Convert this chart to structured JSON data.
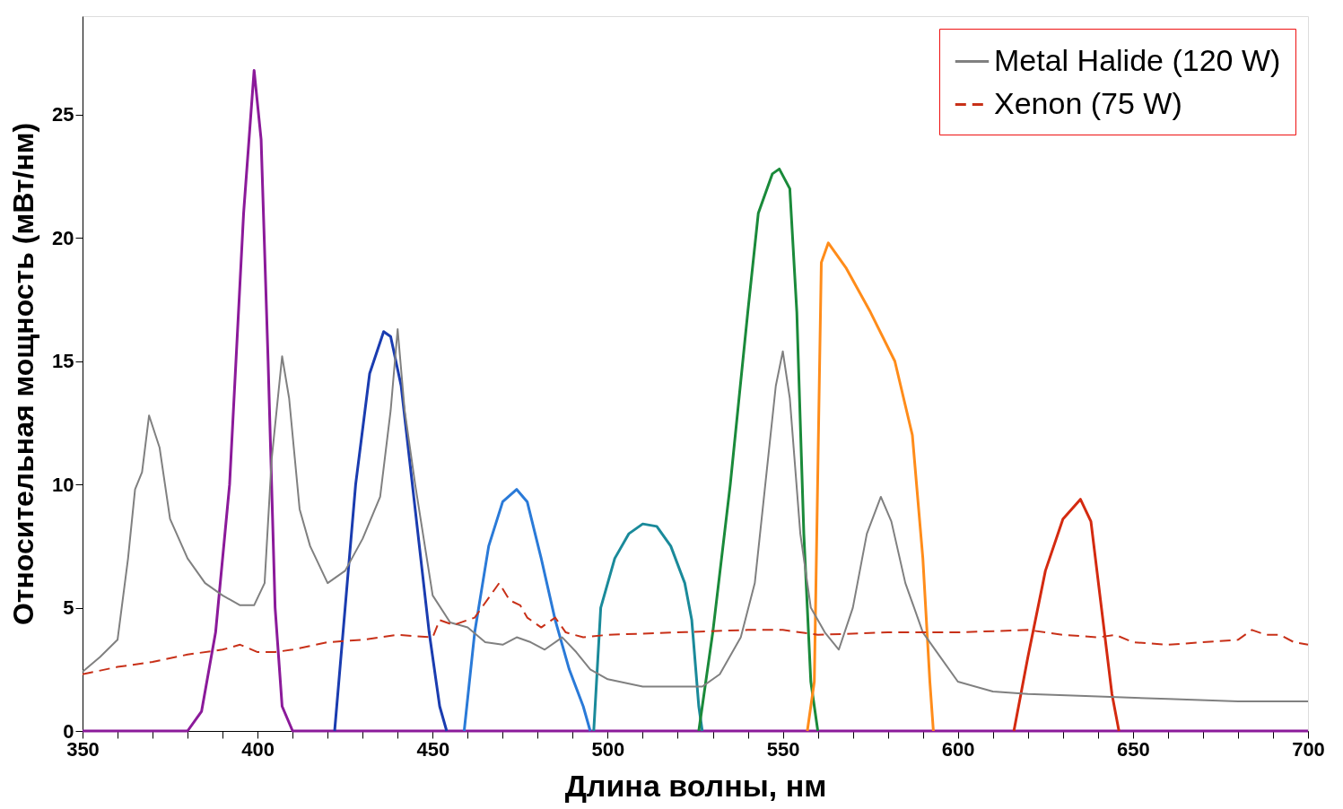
{
  "chart_data": {
    "type": "line",
    "xlabel": "Длина волны, нм",
    "ylabel": "Относительная мощность (мВт/нм)",
    "xlim": [
      350,
      700
    ],
    "ylim": [
      0,
      29
    ],
    "xticks": [
      350,
      {
        "value": 360,
        "label": null
      },
      {
        "value": 370,
        "label": null
      },
      {
        "value": 380,
        "label": null
      },
      {
        "value": 390,
        "label": null
      },
      400,
      {
        "value": 410,
        "label": null
      },
      {
        "value": 420,
        "label": null
      },
      {
        "value": 430,
        "label": null
      },
      {
        "value": 440,
        "label": null
      },
      450,
      {
        "value": 460,
        "label": null
      },
      {
        "value": 470,
        "label": null
      },
      {
        "value": 480,
        "label": null
      },
      {
        "value": 490,
        "label": null
      },
      500,
      {
        "value": 510,
        "label": null
      },
      {
        "value": 520,
        "label": null
      },
      {
        "value": 530,
        "label": null
      },
      {
        "value": 540,
        "label": null
      },
      550,
      {
        "value": 560,
        "label": null
      },
      {
        "value": 570,
        "label": null
      },
      {
        "value": 580,
        "label": null
      },
      {
        "value": 590,
        "label": null
      },
      600,
      {
        "value": 610,
        "label": null
      },
      {
        "value": 620,
        "label": null
      },
      {
        "value": 630,
        "label": null
      },
      {
        "value": 640,
        "label": null
      },
      650,
      {
        "value": 660,
        "label": null
      },
      {
        "value": 670,
        "label": null
      },
      {
        "value": 680,
        "label": null
      },
      {
        "value": 690,
        "label": null
      },
      700
    ],
    "yticks": [
      0,
      5,
      10,
      15,
      20,
      25
    ],
    "grid": false,
    "legend": "top right",
    "marker": "none",
    "series": [
      {
        "color": "#8b1a9a",
        "x": [
          350,
          380,
          384,
          388,
          392,
          396,
          399,
          401,
          403,
          405,
          407,
          410,
          700
        ],
        "values": [
          0,
          0,
          0.8,
          4,
          10,
          21,
          26.8,
          24,
          15,
          5,
          1,
          0,
          0
        ]
      },
      {
        "color": "#1a3cb0",
        "x": [
          422,
          425,
          428,
          432,
          436,
          438,
          441,
          445,
          449,
          452,
          454
        ],
        "values": [
          0,
          5,
          10,
          14.5,
          16.2,
          16,
          14,
          9,
          4,
          1,
          0
        ]
      },
      {
        "color": "#2a7ad8",
        "x": [
          459,
          462,
          466,
          470,
          474,
          477,
          481,
          485,
          489,
          493,
          495
        ],
        "values": [
          0,
          4,
          7.5,
          9.3,
          9.8,
          9.3,
          7,
          4.5,
          2.5,
          1,
          0
        ]
      },
      {
        "color": "#1a8a9a",
        "x": [
          496,
          498,
          502,
          506,
          510,
          514,
          518,
          522,
          524,
          526,
          527
        ],
        "values": [
          0,
          5,
          7,
          8,
          8.4,
          8.3,
          7.5,
          6,
          4.5,
          1,
          0
        ]
      },
      {
        "color": "#1a8a3a",
        "x": [
          526,
          530,
          535,
          540,
          543,
          547,
          549,
          552,
          554,
          556,
          558,
          560
        ],
        "values": [
          0,
          4,
          10,
          17,
          21,
          22.6,
          22.8,
          22,
          17,
          8,
          2,
          0
        ]
      },
      {
        "color": "#ff8c1a",
        "x": [
          557,
          559,
          561,
          563,
          568,
          575,
          582,
          587,
          590,
          592,
          593
        ],
        "values": [
          0,
          2,
          19,
          19.8,
          18.8,
          17,
          15,
          12,
          7,
          2,
          0
        ]
      },
      {
        "color": "#d42a10",
        "x": [
          616,
          620,
          625,
          630,
          635,
          638,
          641,
          644,
          646
        ],
        "values": [
          0,
          3,
          6.5,
          8.6,
          9.4,
          8.5,
          5,
          1.5,
          0
        ]
      },
      {
        "name": "Metal Halide (120 W)",
        "color": "#808080",
        "line_style": "solid",
        "x": [
          350,
          355,
          360,
          363,
          365,
          367,
          369,
          372,
          375,
          380,
          385,
          390,
          395,
          399,
          402,
          404,
          407,
          409,
          412,
          415,
          420,
          425,
          430,
          435,
          438,
          440,
          442,
          445,
          450,
          455,
          460,
          465,
          470,
          474,
          478,
          482,
          487,
          491,
          495,
          500,
          510,
          520,
          527,
          532,
          538,
          542,
          545,
          548,
          550,
          552,
          555,
          558,
          562,
          566,
          570,
          574,
          578,
          581,
          585,
          590,
          595,
          600,
          610,
          620,
          640,
          660,
          680,
          700
        ],
        "values": [
          2.4,
          3,
          3.7,
          7,
          9.8,
          10.5,
          12.8,
          11.5,
          8.6,
          7,
          6,
          5.5,
          5.1,
          5.1,
          6,
          11,
          15.2,
          13.5,
          9,
          7.5,
          6,
          6.5,
          7.8,
          9.5,
          13,
          16.3,
          13,
          10,
          5.5,
          4.4,
          4.2,
          3.6,
          3.5,
          3.8,
          3.6,
          3.3,
          3.8,
          3.2,
          2.5,
          2.1,
          1.8,
          1.8,
          1.8,
          2.3,
          3.8,
          6,
          10,
          14,
          15.4,
          13.5,
          8,
          5,
          4,
          3.3,
          5,
          8,
          9.5,
          8.5,
          6,
          4,
          3,
          2,
          1.6,
          1.5,
          1.4,
          1.3,
          1.2,
          1.2
        ]
      },
      {
        "name": "Xenon (75 W)",
        "color": "#c83018",
        "line_style": "dashed",
        "x": [
          350,
          360,
          370,
          380,
          390,
          395,
          400,
          405,
          410,
          420,
          430,
          440,
          450,
          452,
          456,
          462,
          466,
          469,
          472,
          475,
          477,
          481,
          485,
          488,
          493,
          500,
          520,
          540,
          550,
          560,
          580,
          600,
          620,
          630,
          640,
          645,
          650,
          660,
          680,
          684,
          688,
          692,
          696,
          700
        ],
        "values": [
          2.3,
          2.6,
          2.8,
          3.1,
          3.3,
          3.5,
          3.2,
          3.2,
          3.3,
          3.6,
          3.7,
          3.9,
          3.8,
          4.5,
          4.3,
          4.6,
          5.4,
          6,
          5.3,
          5.1,
          4.6,
          4.2,
          4.6,
          4,
          3.8,
          3.9,
          4,
          4.1,
          4.1,
          3.9,
          4,
          4,
          4.1,
          3.9,
          3.8,
          3.9,
          3.6,
          3.5,
          3.7,
          4.1,
          3.9,
          3.9,
          3.6,
          3.5
        ]
      }
    ]
  }
}
